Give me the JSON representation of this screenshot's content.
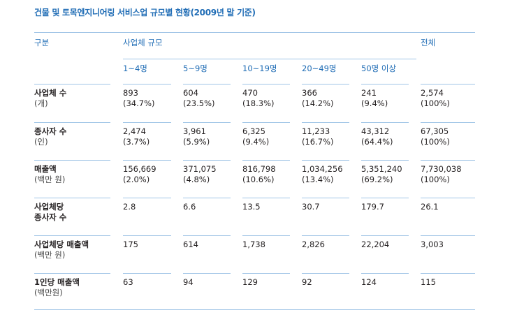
{
  "title": "건물 및 토목엔지니어링 서비스업 규모별 현황(2009년 말 기준)",
  "header": {
    "category": "구분",
    "size_group": "사업체 규모",
    "total": "전체",
    "sizes": [
      "1~4명",
      "5~9명",
      "10~19명",
      "20~49명",
      "50명 이상"
    ]
  },
  "rows": [
    {
      "label": "사업체 수",
      "unit": "(개)",
      "values": [
        "893",
        "604",
        "470",
        "366",
        "241",
        "2,574"
      ],
      "shares": [
        "(34.7%)",
        "(23.5%)",
        "(18.3%)",
        "(14.2%)",
        "(9.4%)",
        "(100%)"
      ]
    },
    {
      "label": "종사자 수",
      "unit": "(인)",
      "values": [
        "2,474",
        "3,961",
        "6,325",
        "11,233",
        "43,312",
        "67,305"
      ],
      "shares": [
        "(3.7%)",
        "(5.9%)",
        "(9.4%)",
        "(16.7%)",
        "(64.4%)",
        "(100%)"
      ]
    },
    {
      "label": "매출액",
      "unit": "(백만 원)",
      "values": [
        "156,669",
        "371,075",
        "816,798",
        "1,034,256",
        "5,351,240",
        "7,730,038"
      ],
      "shares": [
        "(2.0%)",
        "(4.8%)",
        "(10.6%)",
        "(13.4%)",
        "(69.2%)",
        "(100%)"
      ]
    },
    {
      "label": "사업체당",
      "label2": "종사자 수",
      "values": [
        "2.8",
        "6.6",
        "13.5",
        "30.7",
        "179.7",
        "26.1"
      ]
    },
    {
      "label": "사업체당 매출액",
      "unit": "(백만 원)",
      "values": [
        "175",
        "614",
        "1,738",
        "2,826",
        "22,204",
        "3,003"
      ]
    },
    {
      "label": "1인당 매출액",
      "unit": "(백만원)",
      "values": [
        "63",
        "94",
        "129",
        "92",
        "124",
        "115"
      ]
    }
  ],
  "colors": {
    "accent": "#1f6cb5",
    "rule": "#9fc4e6",
    "text": "#231f20"
  }
}
